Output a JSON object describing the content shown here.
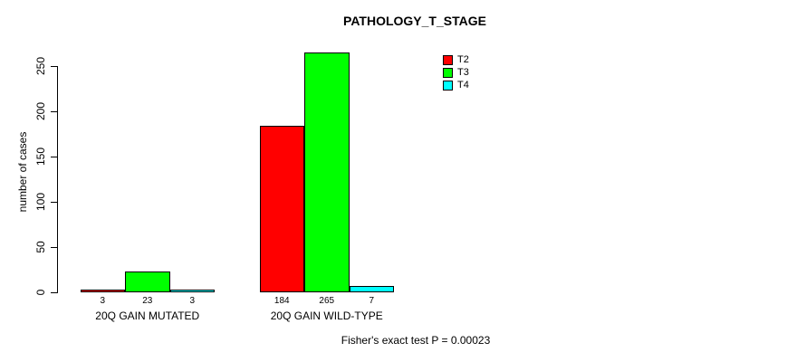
{
  "chart_data": {
    "type": "bar",
    "title": "PATHOLOGY_T_STAGE",
    "ylabel": "number of cases",
    "xlabel": "",
    "categories": [
      "20Q GAIN MUTATED",
      "20Q GAIN WILD-TYPE"
    ],
    "series": [
      {
        "name": "T2",
        "color": "#FF0000",
        "values": [
          3,
          184
        ]
      },
      {
        "name": "T3",
        "color": "#00FF00",
        "values": [
          23,
          265
        ]
      },
      {
        "name": "T4",
        "color": "#00FFFF",
        "values": [
          3,
          7
        ]
      }
    ],
    "yticks": [
      0,
      50,
      100,
      150,
      200,
      250
    ],
    "ylim": [
      0,
      250
    ],
    "grid": false,
    "bar_value_labels": true,
    "legend_position": "top-right",
    "annotation": "Fisher's exact test P = 0.00023"
  },
  "colors": {
    "background": "#FFFFFF",
    "axis": "#000000",
    "text": "#000000",
    "t2": "#FF0000",
    "t3": "#00FF00",
    "t4": "#00FFFF"
  }
}
